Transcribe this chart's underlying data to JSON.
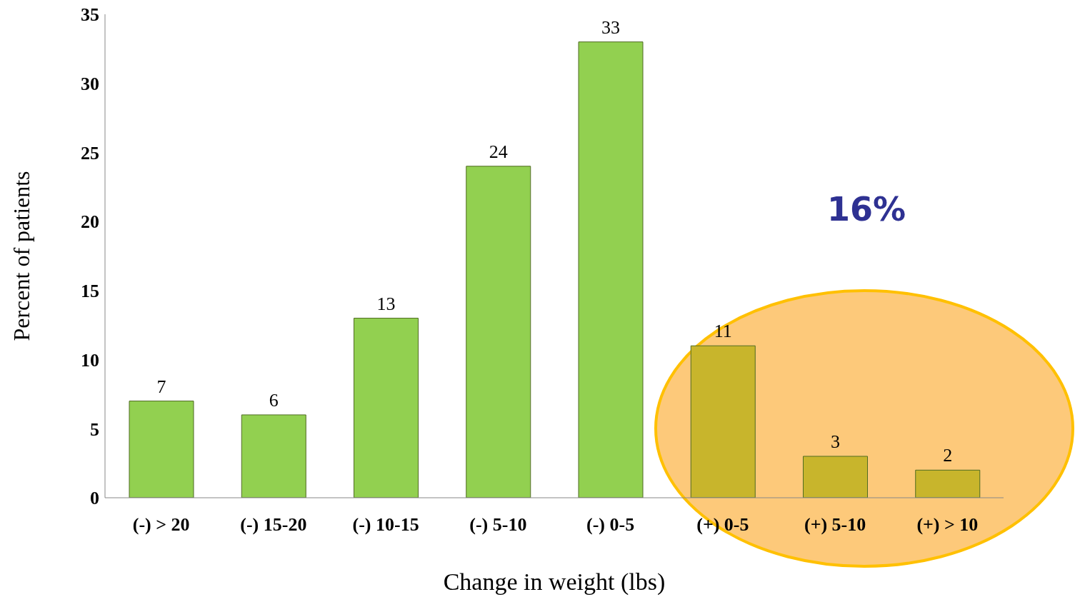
{
  "chart_data": {
    "type": "bar",
    "xlabel": "Change in weight (lbs)",
    "ylabel": "Percent of patients",
    "categories": [
      "(-) > 20",
      "(-) 15-20",
      "(-) 10-15",
      "(-) 5-10",
      "(-) 0-5",
      "(+) 0-5",
      "(+) 5-10",
      "(+) > 10"
    ],
    "values": [
      7,
      6,
      13,
      24,
      33,
      11,
      3,
      2
    ],
    "colors": [
      "#92d050",
      "#92d050",
      "#92d050",
      "#92d050",
      "#92d050",
      "#c8b52c",
      "#c8b52c",
      "#c8b52c"
    ],
    "ylim": [
      0,
      35
    ],
    "yticks": [
      0,
      5,
      10,
      15,
      20,
      25,
      30,
      35
    ],
    "data_labels": true,
    "grid": false,
    "legend": false,
    "annotations": [
      "16%"
    ]
  }
}
